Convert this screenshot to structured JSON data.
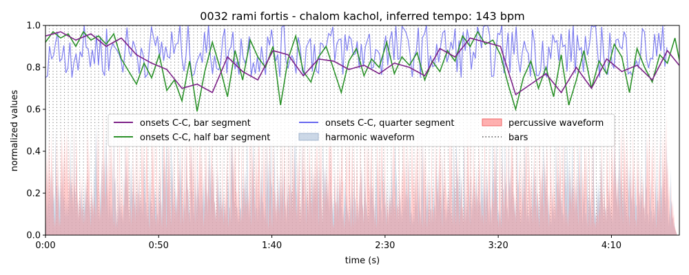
{
  "chart_data": {
    "type": "line",
    "title": "0032 rami fortis - chalom kachol, inferred tempo: 143 bpm",
    "xlabel": "time (s)",
    "ylabel": "normalized values",
    "xlim": [
      0,
      280
    ],
    "ylim": [
      0,
      1.0
    ],
    "x_ticks": [
      0,
      50,
      100,
      150,
      200,
      250
    ],
    "x_tick_labels": [
      "0:00",
      "0:50",
      "1:40",
      "2:30",
      "3:20",
      "4:10"
    ],
    "y_ticks": [
      0.0,
      0.2,
      0.4,
      0.6,
      0.8,
      1.0
    ],
    "y_tick_labels": [
      "0.0",
      "0.2",
      "0.4",
      "0.6",
      "0.8",
      "1.0"
    ],
    "bar_period_s": 1.678,
    "song_end_s": 275,
    "legend_position": "center",
    "series": [
      {
        "name": "onsets C-C, bar segment",
        "color": "#7b1f86",
        "kind": "line",
        "x_step": 6.7,
        "values": [
          0.95,
          0.97,
          0.93,
          0.96,
          0.9,
          0.94,
          0.86,
          0.82,
          0.79,
          0.7,
          0.72,
          0.68,
          0.85,
          0.78,
          0.74,
          0.88,
          0.86,
          0.76,
          0.84,
          0.83,
          0.79,
          0.81,
          0.77,
          0.82,
          0.8,
          0.76,
          0.89,
          0.85,
          0.94,
          0.92,
          0.9,
          0.67,
          0.72,
          0.77,
          0.68,
          0.8,
          0.7,
          0.84,
          0.78,
          0.81,
          0.74,
          0.88,
          0.79,
          0.84,
          0.91,
          0.88,
          0.82,
          0.78,
          0.75,
          0.83,
          0.72,
          0.85,
          0.8,
          0.92,
          0.9,
          0.95,
          0.93,
          0.88,
          0.93,
          0.9,
          0.84,
          0.89,
          0.83,
          0.8,
          0.82,
          0.85,
          0.87,
          0.83,
          0.88
        ]
      },
      {
        "name": "onsets C-C, half bar segment",
        "color": "#2a9128",
        "kind": "line",
        "x_step": 3.35,
        "values": [
          0.92,
          0.97,
          0.94,
          0.96,
          0.9,
          0.97,
          0.93,
          0.95,
          0.91,
          0.96,
          0.84,
          0.78,
          0.72,
          0.82,
          0.75,
          0.86,
          0.69,
          0.74,
          0.64,
          0.83,
          0.59,
          0.78,
          0.92,
          0.8,
          0.66,
          0.88,
          0.74,
          0.93,
          0.85,
          0.8,
          0.9,
          0.62,
          0.84,
          0.95,
          0.78,
          0.73,
          0.85,
          0.9,
          0.79,
          0.68,
          0.83,
          0.89,
          0.76,
          0.84,
          0.8,
          0.92,
          0.77,
          0.85,
          0.81,
          0.87,
          0.74,
          0.83,
          0.78,
          0.88,
          0.83,
          0.95,
          0.9,
          0.97,
          0.91,
          0.93,
          0.86,
          0.72,
          0.6,
          0.75,
          0.83,
          0.7,
          0.8,
          0.66,
          0.86,
          0.62,
          0.74,
          0.88,
          0.7,
          0.83,
          0.77,
          0.91,
          0.85,
          0.68,
          0.89,
          0.8,
          0.73,
          0.86,
          0.82,
          0.94,
          0.76,
          0.9,
          0.79,
          0.7,
          0.84,
          0.93,
          0.87,
          0.78,
          0.92,
          0.96,
          0.9,
          0.86,
          0.97,
          0.92,
          0.85,
          0.9,
          0.88,
          0.94,
          0.84,
          0.88,
          0.82,
          0.86,
          0.9,
          0.84,
          0.81,
          0.87,
          0.83,
          0.9,
          0.86,
          0.88,
          0.8,
          0.84,
          0.82,
          0.86,
          0.79,
          0.85,
          0.81,
          0.87,
          0.83,
          0.88,
          0.84,
          0.86,
          0.82,
          0.85,
          0.81,
          0.84,
          0.82,
          0.85,
          0.83,
          0.86,
          0.84,
          0.82,
          0.85,
          0.83
        ]
      },
      {
        "name": "onsets C-C, quarter segment",
        "color": "#6666ee",
        "kind": "noise",
        "center": 0.88,
        "spread": 0.13
      },
      {
        "name": "harmonic waveform",
        "color": "#b7c8dd",
        "kind": "area",
        "center": 0.24,
        "spread": 0.14
      },
      {
        "name": "percussive waveform",
        "color": "#ff8f8f",
        "kind": "area",
        "center": 0.3,
        "spread": 0.24
      },
      {
        "name": "bars",
        "color": "#777777",
        "kind": "vlines"
      }
    ]
  }
}
